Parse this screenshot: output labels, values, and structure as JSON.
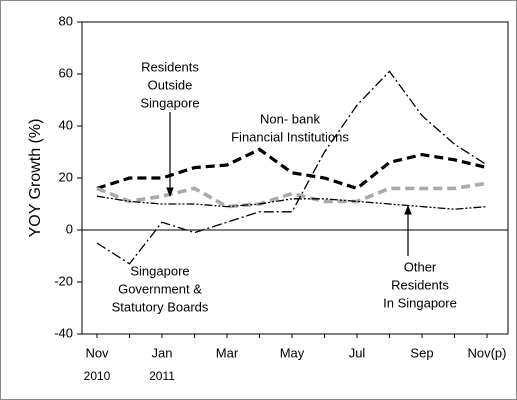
{
  "chart_data": {
    "type": "line",
    "y_label": "YOY Growth (%)",
    "categories": [
      "Nov",
      null,
      "Jan",
      null,
      "Mar",
      null,
      "May",
      null,
      "Jul",
      null,
      "Sep",
      null,
      "Nov(p)"
    ],
    "category_years": [
      "2010",
      null,
      "2011",
      null,
      null,
      null,
      null,
      null,
      null,
      null,
      null,
      null,
      null
    ],
    "ylim": [
      -40,
      80
    ],
    "yticks": [
      -40,
      -20,
      0,
      20,
      40,
      60,
      80
    ],
    "series": [
      {
        "label": [
          "Non- bank",
          "Financial Institutions"
        ],
        "color": "#000000",
        "line_style": "dashed",
        "values": [
          16,
          20,
          20,
          24,
          25,
          31,
          22,
          20,
          16,
          26,
          29,
          27,
          24
        ]
      },
      {
        "label": [
          "Residents",
          "Outside",
          "Singapore"
        ],
        "color": "#aaaaaa",
        "line_style": "dashed",
        "values": [
          16,
          11,
          13,
          16,
          9,
          10,
          14,
          11,
          11,
          16,
          16,
          16,
          18
        ]
      },
      {
        "label": [
          "Other",
          "Residents",
          "In Singapore"
        ],
        "color": "#000000",
        "line_style": "dash-dot-dot",
        "values": [
          13,
          11,
          10,
          10,
          9,
          10,
          12,
          12,
          11,
          10,
          9,
          8,
          9
        ]
      },
      {
        "label": [
          "Singapore",
          "Government &",
          "Statutory Boards"
        ],
        "color": "#000000",
        "line_style": "dash-dot",
        "values": [
          -5,
          -13,
          3,
          -1,
          3,
          7,
          7,
          30,
          48,
          61,
          44,
          33,
          25
        ]
      }
    ]
  }
}
